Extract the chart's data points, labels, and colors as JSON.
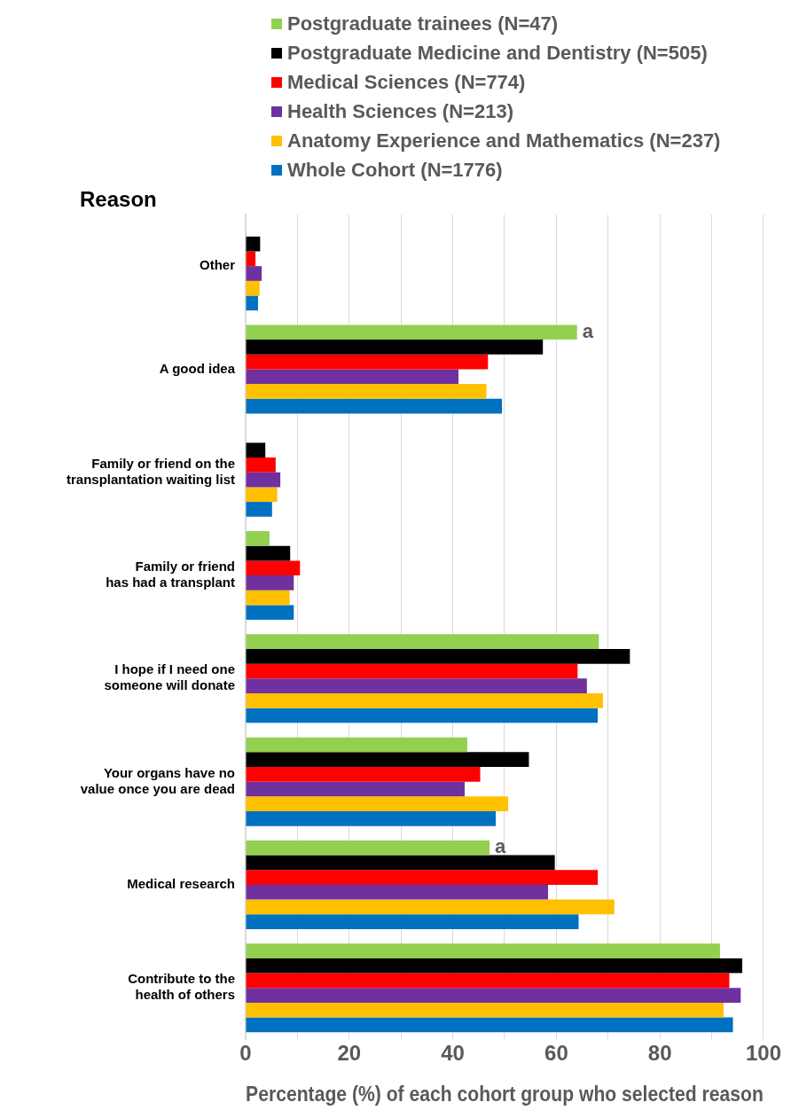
{
  "chart_data": {
    "type": "bar",
    "orientation": "horizontal",
    "ylabel": "Reason",
    "xlabel": "Percentage (%) of each cohort group who selected reason",
    "categories": [
      "Other",
      "A good idea",
      "Family or friend on the transplantation waiting list",
      "Family or friend has had a transplant",
      "I hope if I need one someone will donate",
      "Your organs have no value once you are dead",
      "Medical research",
      "Contribute to the health of others"
    ],
    "series": [
      {
        "name": "Postgraduate trainees (N=47)",
        "color": "#92d050",
        "values": [
          null,
          64.0,
          null,
          4.6,
          68.2,
          42.8,
          47.1,
          91.6
        ],
        "value_labels": [
          null,
          "a",
          null,
          null,
          null,
          null,
          "a",
          null
        ]
      },
      {
        "name": "Postgraduate Medicine and Dentistry (N=505)",
        "color": "#000000",
        "values": [
          2.8,
          57.4,
          3.8,
          8.6,
          74.2,
          54.7,
          59.7,
          95.9
        ]
      },
      {
        "name": "Medical Sciences (N=774)",
        "color": "#ff0000",
        "values": [
          1.9,
          46.8,
          5.8,
          10.5,
          64.1,
          45.3,
          68.0,
          93.4
        ]
      },
      {
        "name": "Health Sciences (N=213)",
        "color": "#7030a0",
        "values": [
          3.1,
          41.1,
          6.7,
          9.3,
          65.9,
          42.3,
          58.4,
          95.6
        ]
      },
      {
        "name": "Anatomy Experience and Mathematics (N=237)",
        "color": "#ffc000",
        "values": [
          2.7,
          46.5,
          6.1,
          8.5,
          69.0,
          50.7,
          71.2,
          92.3
        ]
      },
      {
        "name": "Whole Cohort (N=1776)",
        "color": "#0070c0",
        "values": [
          2.4,
          49.5,
          5.1,
          9.3,
          68.0,
          48.3,
          64.3,
          94.1
        ]
      }
    ],
    "xlim": [
      0,
      100
    ],
    "xticks": [
      0,
      {
        "value": 10,
        "label": null
      },
      20,
      {
        "value": 30,
        "label": null
      },
      40,
      {
        "value": 50,
        "label": null
      },
      60,
      {
        "value": 70,
        "label": null
      },
      80,
      {
        "value": 90,
        "label": null
      },
      100
    ],
    "grid": "x",
    "legend": "top"
  }
}
